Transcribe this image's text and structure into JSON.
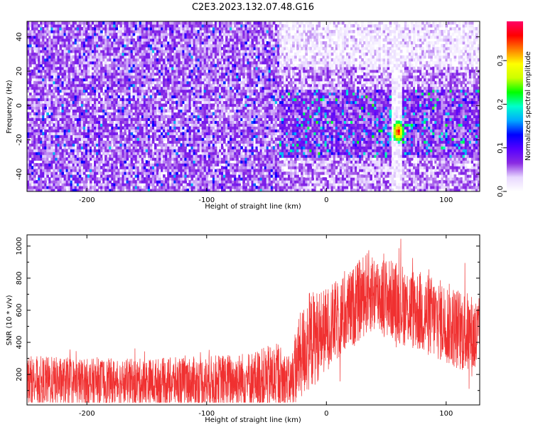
{
  "figure": {
    "title": "C2E3.2023.132.07.48.G16"
  },
  "chart_data": [
    {
      "type": "heatmap",
      "xlabel": "Height of straight line (km)",
      "ylabel": "Frequency (Hz)",
      "xlim": [
        -250,
        128
      ],
      "ylim": [
        -50,
        49
      ],
      "xticks": [
        -200,
        -100,
        0,
        100
      ],
      "yticks": [
        -40,
        -20,
        0,
        20,
        40
      ],
      "colorbar": {
        "label": "Normalized spectral amplitude",
        "range": [
          0,
          0.39
        ],
        "ticks": [
          0.0,
          0.1,
          0.2,
          0.3
        ],
        "colormap": [
          "#ffffff",
          "#e8d8ff",
          "#8a2be2",
          "#5500ff",
          "#0000ff",
          "#00aaff",
          "#00ffcc",
          "#00ff00",
          "#ccff00",
          "#ffff00",
          "#ff8000",
          "#ff0000",
          "#ff0066"
        ]
      },
      "features": {
        "dense_region_x": [
          -250,
          -40
        ],
        "sparse_upper_region_x": [
          -38,
          125
        ],
        "sparse_upper_freq_min": 22,
        "active_band_freq": [
          -30,
          10
        ],
        "gap_x": [
          54,
          64
        ],
        "peak": {
          "x": 60,
          "freq": -15,
          "value": 0.38
        }
      }
    },
    {
      "type": "line",
      "xlabel": "Height of straight line (km)",
      "ylabel": "SNR (10 * v/v)",
      "xlim": [
        -250,
        128
      ],
      "ylim": [
        10,
        1070
      ],
      "xticks": [
        -200,
        -100,
        0,
        100
      ],
      "yticks": [
        200,
        400,
        600,
        800,
        1000
      ],
      "color": "#f03030",
      "envelope": [
        {
          "x": -250,
          "mean": 160,
          "amp": 160
        },
        {
          "x": -200,
          "mean": 150,
          "amp": 150
        },
        {
          "x": -150,
          "mean": 150,
          "amp": 150
        },
        {
          "x": -100,
          "mean": 155,
          "amp": 160
        },
        {
          "x": -60,
          "mean": 170,
          "amp": 180
        },
        {
          "x": -40,
          "mean": 180,
          "amp": 220
        },
        {
          "x": -30,
          "mean": 150,
          "amp": 150
        },
        {
          "x": -24,
          "mean": 280,
          "amp": 260
        },
        {
          "x": -15,
          "mean": 400,
          "amp": 320
        },
        {
          "x": 0,
          "mean": 480,
          "amp": 260
        },
        {
          "x": 20,
          "mean": 600,
          "amp": 250
        },
        {
          "x": 35,
          "mean": 720,
          "amp": 260
        },
        {
          "x": 50,
          "mean": 680,
          "amp": 250
        },
        {
          "x": 75,
          "mean": 600,
          "amp": 260
        },
        {
          "x": 100,
          "mean": 520,
          "amp": 260
        },
        {
          "x": 128,
          "mean": 420,
          "amp": 260
        }
      ]
    }
  ]
}
